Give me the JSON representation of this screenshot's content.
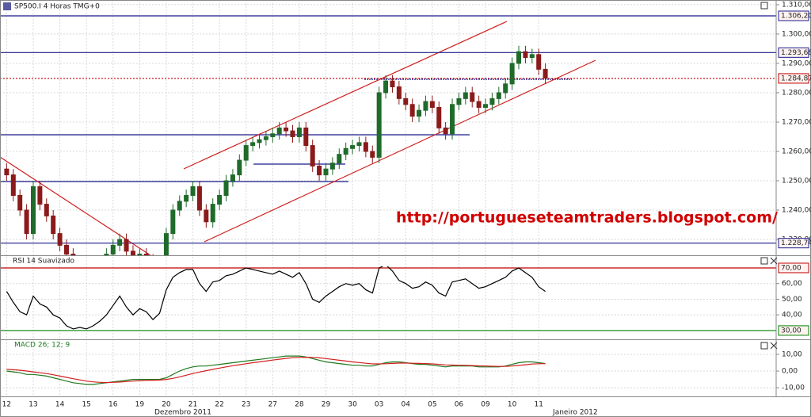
{
  "chart_data": [
    {
      "type": "candlestick",
      "title": "SP500.I 4 Horas TMG+0",
      "annotation": "http://portugueseteamtraders.blogspot.com/",
      "xlim": [
        -1,
        115.7
      ],
      "xticks": [
        {
          "value": 0,
          "label": "12"
        },
        {
          "value": 4,
          "label": "13"
        },
        {
          "value": 8,
          "label": "14"
        },
        {
          "value": 12,
          "label": "15"
        },
        {
          "value": 16,
          "label": "16"
        },
        {
          "value": 20,
          "label": "19"
        },
        {
          "value": 24,
          "label": "20"
        },
        {
          "value": 28,
          "label": "21"
        },
        {
          "value": 32,
          "label": "22"
        },
        {
          "value": 36,
          "label": "23"
        },
        {
          "value": 40,
          "label": "27"
        },
        {
          "value": 44,
          "label": "28"
        },
        {
          "value": 48,
          "label": "29"
        },
        {
          "value": 52,
          "label": "30"
        },
        {
          "value": 56,
          "label": "03"
        },
        {
          "value": 60,
          "label": "04"
        },
        {
          "value": 64,
          "label": "05"
        },
        {
          "value": 68,
          "label": "06"
        },
        {
          "value": 72,
          "label": "09"
        },
        {
          "value": 76,
          "label": "10"
        },
        {
          "value": 80,
          "label": "11"
        }
      ],
      "month_labels": [
        {
          "value": 26.5,
          "label": "Dezembro 2011"
        },
        {
          "value": 85.5,
          "label": "Janeiro 2012"
        }
      ],
      "ylim": [
        1224.6,
        1311.6
      ],
      "yticks": [
        {
          "value": 1230,
          "label": "1.230,00"
        },
        {
          "value": 1240,
          "label": "1.240,00"
        },
        {
          "value": 1250,
          "label": "1.250,00"
        },
        {
          "value": 1260,
          "label": "1.260,00"
        },
        {
          "value": 1270,
          "label": "1.270,00"
        },
        {
          "value": 1280,
          "label": "1.280,00"
        },
        {
          "value": 1290,
          "label": "1.290,00"
        },
        {
          "value": 1300,
          "label": "1.300,00"
        },
        {
          "value": 1310,
          "label": "1.310,00"
        }
      ],
      "levels": [
        {
          "value": 1306.2,
          "label": "1.306,20",
          "color": "#1a1a8c"
        },
        {
          "value": 1293.68,
          "label": "1.293,68",
          "color": "#1a1a8c"
        },
        {
          "value": 1284.87,
          "label": "1.284,87",
          "color": "#c00000"
        },
        {
          "value": 1228.74,
          "label": "1.228,74",
          "color": "#1a1a8c"
        }
      ],
      "up_color": "#1f6b2a",
      "down_color": "#8b1a1a",
      "open": [
        1254,
        1252,
        1245,
        1240,
        1232,
        1248,
        1242,
        1238,
        1232,
        1228,
        1225,
        1222,
        1220,
        1218,
        1220,
        1222,
        1225,
        1228,
        1230,
        1226,
        1224,
        1225,
        1223,
        1220,
        1222,
        1232,
        1240,
        1243,
        1245,
        1248,
        1240,
        1236,
        1242,
        1245,
        1250,
        1252,
        1257,
        1262,
        1263,
        1264,
        1265,
        1266,
        1268,
        1267,
        1265,
        1268,
        1262,
        1255,
        1252,
        1254,
        1256,
        1259,
        1261,
        1262,
        1263,
        1260,
        1258,
        1280,
        1284,
        1282,
        1278,
        1276,
        1272,
        1274,
        1277,
        1275,
        1268,
        1266,
        1276,
        1278,
        1280,
        1277,
        1275,
        1276,
        1278,
        1280,
        1283,
        1290,
        1294,
        1292,
        1293,
        1288
      ],
      "high": [
        1256,
        1254,
        1247,
        1242,
        1250,
        1250,
        1244,
        1240,
        1234,
        1230,
        1227,
        1224,
        1222,
        1222,
        1224,
        1227,
        1230,
        1232,
        1232,
        1228,
        1227,
        1227,
        1225,
        1224,
        1234,
        1242,
        1245,
        1247,
        1250,
        1250,
        1242,
        1244,
        1247,
        1252,
        1254,
        1259,
        1264,
        1265,
        1266,
        1267,
        1268,
        1270,
        1270,
        1269,
        1270,
        1270,
        1264,
        1257,
        1256,
        1258,
        1261,
        1263,
        1264,
        1265,
        1265,
        1262,
        1282,
        1286,
        1286,
        1284,
        1280,
        1278,
        1276,
        1279,
        1279,
        1277,
        1270,
        1278,
        1280,
        1282,
        1282,
        1279,
        1278,
        1280,
        1282,
        1285,
        1292,
        1296,
        1296,
        1295,
        1295,
        1290
      ],
      "low": [
        1250,
        1243,
        1238,
        1230,
        1230,
        1240,
        1236,
        1230,
        1226,
        1223,
        1220,
        1218,
        1216,
        1216,
        1218,
        1220,
        1223,
        1226,
        1224,
        1222,
        1222,
        1221,
        1218,
        1218,
        1220,
        1230,
        1238,
        1241,
        1243,
        1238,
        1234,
        1234,
        1240,
        1243,
        1248,
        1250,
        1255,
        1260,
        1261,
        1262,
        1263,
        1264,
        1265,
        1263,
        1263,
        1260,
        1253,
        1250,
        1250,
        1252,
        1254,
        1257,
        1259,
        1260,
        1258,
        1256,
        1256,
        1278,
        1280,
        1276,
        1274,
        1270,
        1270,
        1272,
        1273,
        1266,
        1264,
        1264,
        1274,
        1276,
        1275,
        1273,
        1273,
        1274,
        1276,
        1278,
        1281,
        1288,
        1290,
        1290,
        1286,
        1283
      ],
      "close": [
        1252,
        1245,
        1240,
        1232,
        1248,
        1242,
        1238,
        1232,
        1228,
        1225,
        1222,
        1220,
        1218,
        1220,
        1222,
        1225,
        1228,
        1230,
        1226,
        1224,
        1225,
        1223,
        1220,
        1222,
        1232,
        1240,
        1243,
        1245,
        1248,
        1240,
        1236,
        1242,
        1245,
        1250,
        1252,
        1257,
        1262,
        1263,
        1264,
        1265,
        1266,
        1268,
        1267,
        1265,
        1268,
        1262,
        1255,
        1252,
        1254,
        1256,
        1259,
        1261,
        1262,
        1263,
        1260,
        1258,
        1280,
        1284,
        1282,
        1278,
        1276,
        1272,
        1274,
        1277,
        1275,
        1268,
        1266,
        1276,
        1278,
        1280,
        1277,
        1275,
        1276,
        1278,
        1280,
        1283,
        1290,
        1294,
        1292,
        1293,
        1288,
        1285
      ]
    },
    {
      "type": "line",
      "title": "RSI 14 Suavizado",
      "ylim": [
        25.4,
        71
      ],
      "yticks": [
        {
          "value": 40,
          "label": "40,00"
        },
        {
          "value": 50,
          "label": "50,00"
        },
        {
          "value": 60,
          "label": "60,00"
        }
      ],
      "levels": [
        {
          "value": 70,
          "label": "70,00",
          "color": "#c00000"
        },
        {
          "value": 30,
          "label": "30,00",
          "color": "#008000"
        }
      ],
      "series": [
        {
          "color": "#000000",
          "values": [
            55,
            48,
            42,
            40,
            52,
            47,
            45,
            40,
            38,
            33,
            31,
            32,
            31,
            33,
            36,
            40,
            46,
            52,
            45,
            40,
            44,
            42,
            37,
            41,
            56,
            64,
            67,
            69,
            69,
            60,
            55,
            61,
            62,
            65,
            66,
            68,
            70,
            69,
            68,
            67,
            66,
            68,
            66,
            64,
            67,
            60,
            50,
            48,
            52,
            55,
            58,
            60,
            59,
            60,
            56,
            54,
            70,
            72,
            68,
            62,
            60,
            57,
            58,
            61,
            59,
            54,
            52,
            61,
            62,
            63,
            60,
            57,
            58,
            60,
            62,
            64,
            68,
            70,
            67,
            64,
            58,
            55
          ]
        }
      ]
    },
    {
      "type": "line",
      "title": "MACD 26; 12; 9",
      "ylim": [
        -15.2,
        18.1
      ],
      "yticks": [
        {
          "value": -10,
          "label": "-10,00"
        },
        {
          "value": 0,
          "label": "0,00"
        },
        {
          "value": 10,
          "label": "10,00"
        }
      ],
      "series": [
        {
          "color": "#1e7a1e",
          "values": [
            0,
            -0.5,
            -1,
            -2,
            -2,
            -2.5,
            -3,
            -4,
            -5,
            -6,
            -7,
            -7.5,
            -8,
            -8,
            -7.5,
            -7,
            -6.5,
            -6,
            -5.5,
            -5,
            -5,
            -5,
            -5,
            -5,
            -4,
            -2,
            0,
            1.5,
            2.5,
            3,
            3,
            3.5,
            4,
            4.5,
            5,
            5.5,
            6,
            6.5,
            7,
            7.5,
            8,
            8.5,
            9,
            9,
            9,
            8.5,
            7.5,
            6.5,
            5.5,
            5,
            4.5,
            4,
            3.5,
            3.5,
            3,
            3,
            4,
            5,
            5.5,
            5.5,
            5,
            4.5,
            4,
            4,
            3.5,
            3,
            2.5,
            3,
            3,
            3,
            3,
            2.5,
            2.5,
            2.5,
            2.5,
            3,
            4,
            5,
            5.5,
            5.5,
            5,
            4.5
          ]
        },
        {
          "color": "#d02020",
          "values": [
            1,
            0.8,
            0.5,
            0,
            -0.5,
            -1,
            -1.5,
            -2.2,
            -3,
            -3.8,
            -4.6,
            -5.3,
            -6,
            -6.5,
            -6.8,
            -6.9,
            -6.8,
            -6.6,
            -6.3,
            -6,
            -5.8,
            -5.6,
            -5.5,
            -5.4,
            -5,
            -4.4,
            -3.5,
            -2.5,
            -1.5,
            -0.6,
            0.2,
            1,
            1.8,
            2.5,
            3.2,
            3.8,
            4.4,
            5,
            5.5,
            6,
            6.6,
            7.1,
            7.6,
            8,
            8.2,
            8.3,
            8.2,
            7.9,
            7.5,
            7,
            6.5,
            6,
            5.5,
            5.1,
            4.7,
            4.3,
            4.3,
            4.4,
            4.6,
            4.8,
            4.8,
            4.7,
            4.6,
            4.5,
            4.3,
            4,
            3.7,
            3.6,
            3.5,
            3.4,
            3.3,
            3.1,
            3,
            2.9,
            2.8,
            2.8,
            3,
            3.4,
            3.8,
            4.2,
            4.4,
            4.5
          ]
        }
      ]
    }
  ]
}
